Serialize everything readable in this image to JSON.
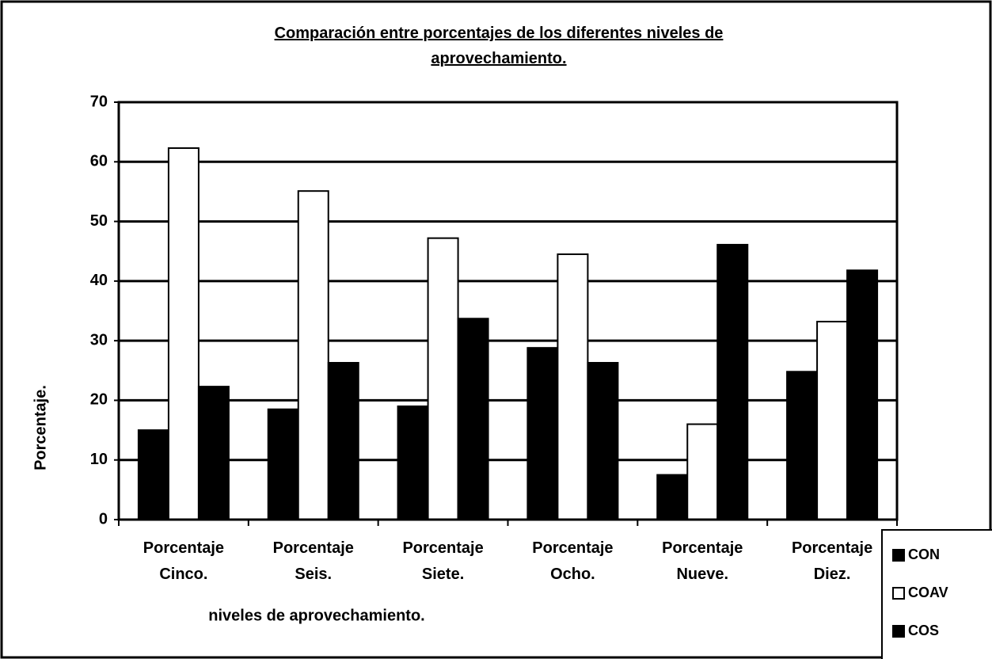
{
  "chart_data": {
    "type": "bar",
    "title": "Comparación entre porcentajes de los diferentes niveles de aprovechamiento.",
    "x_label": "niveles de aprovechamiento.",
    "y_label": "Porcentaje.",
    "categories": [
      "Porcentaje Cinco.",
      "Porcentaje Seis.",
      "Porcentaje Siete.",
      "Porcentaje Ocho.",
      "Porcentaje Nueve.",
      "Porcentaje Diez."
    ],
    "series": [
      {
        "name": "CON",
        "color": "#000000",
        "values": [
          15,
          18.5,
          19,
          28.8,
          7.5,
          24.8
        ]
      },
      {
        "name": "COAV",
        "color": "#ffffff",
        "values": [
          62.3,
          55.1,
          47.2,
          44.5,
          16,
          33.2
        ]
      },
      {
        "name": "COS",
        "color": "#000000",
        "values": [
          22.3,
          26.3,
          33.7,
          26.3,
          46.1,
          41.8
        ]
      }
    ],
    "ylim": [
      0,
      70
    ],
    "yticks": [
      0,
      10,
      20,
      30,
      40,
      50,
      60,
      70
    ],
    "grid": true,
    "legend": "bottom-right"
  }
}
